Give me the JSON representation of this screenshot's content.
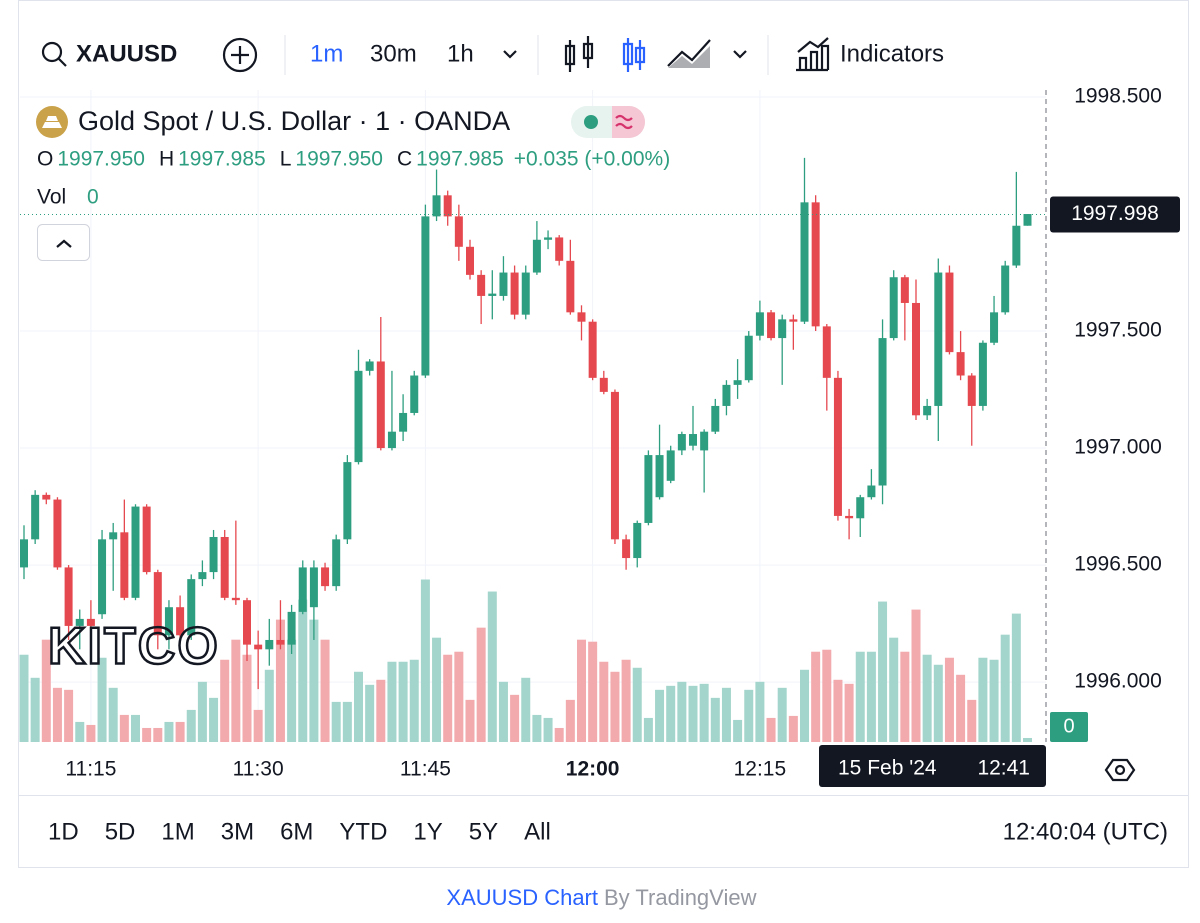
{
  "toolbar": {
    "symbol": "XAUUSD",
    "intervals": [
      "1m",
      "30m",
      "1h"
    ],
    "indicators": "Indicators"
  },
  "legend": {
    "title": "Gold Spot / U.S. Dollar · 1 · OANDA",
    "ohlc": [
      {
        "key": "O",
        "value": "1997.950"
      },
      {
        "key": "H",
        "value": "1997.985"
      },
      {
        "key": "L",
        "value": "1997.950"
      },
      {
        "key": "C",
        "value": "1997.985"
      }
    ],
    "change": "+0.035 (+0.00%)",
    "vol_label": "Vol",
    "vol_value": "0"
  },
  "watermark": "KITCO",
  "crosshair": {
    "date": "15 Feb '24",
    "time": "12:41"
  },
  "ranges": [
    "1D",
    "5D",
    "1M",
    "3M",
    "6M",
    "YTD",
    "1Y",
    "5Y",
    "All"
  ],
  "clock": "12:40:04 (UTC)",
  "footer": {
    "link": "XAUUSD Chart",
    "by": "By TradingView"
  },
  "chart_data": {
    "type": "candlestick",
    "up_color": "#2e9e80",
    "down_color": "#e5494f",
    "volume_up_color": "#a3d5cc",
    "volume_down_color": "#f2aaad",
    "grid": true,
    "ylim": [
      1995.744,
      1998.53
    ],
    "yticks": [
      {
        "value": 1996,
        "label": "1996.000"
      },
      {
        "value": 1996.5,
        "label": "1996.500"
      },
      {
        "value": 1997,
        "label": "1997.000"
      },
      {
        "value": 1997.5,
        "label": "1997.500"
      },
      {
        "value": 1998.5,
        "label": "1998.500"
      }
    ],
    "xticks": [
      "11:15",
      "11:30",
      "11:45",
      "12:00",
      "12:15"
    ],
    "last_price": {
      "value": 1997.998,
      "label": "1997.998"
    },
    "volume_last": "0",
    "volume_lim": [
      0,
      650
    ],
    "x": [
      "11:09",
      "11:10",
      "11:11",
      "11:12",
      "11:13",
      "11:14",
      "11:15",
      "11:16",
      "11:17",
      "11:18",
      "11:19",
      "11:20",
      "11:21",
      "11:22",
      "11:23",
      "11:24",
      "11:25",
      "11:26",
      "11:27",
      "11:28",
      "11:29",
      "11:30",
      "11:31",
      "11:32",
      "11:33",
      "11:34",
      "11:35",
      "11:36",
      "11:37",
      "11:38",
      "11:39",
      "11:40",
      "11:41",
      "11:42",
      "11:43",
      "11:44",
      "11:45",
      "11:46",
      "11:47",
      "11:48",
      "11:49",
      "11:50",
      "11:51",
      "11:52",
      "11:53",
      "11:54",
      "11:55",
      "11:56",
      "11:57",
      "11:58",
      "11:59",
      "12:00",
      "12:01",
      "12:02",
      "12:03",
      "12:04",
      "12:05",
      "12:06",
      "12:07",
      "12:08",
      "12:09",
      "12:10",
      "12:11",
      "12:12",
      "12:13",
      "12:14",
      "12:15",
      "12:16",
      "12:17",
      "12:18",
      "12:19",
      "12:20",
      "12:21",
      "12:22",
      "12:23",
      "12:24",
      "12:25",
      "12:26",
      "12:27",
      "12:28",
      "12:29",
      "12:30",
      "12:31",
      "12:32",
      "12:33",
      "12:34",
      "12:35",
      "12:36",
      "12:37",
      "12:38",
      "12:39"
    ],
    "open": [
      1996.49,
      1996.61,
      1996.8,
      1996.78,
      1996.49,
      1996.24,
      1996.27,
      1996.29,
      1996.61,
      1996.64,
      1996.36,
      1996.75,
      1996.47,
      1996.2,
      1996.32,
      1996.2,
      1996.44,
      1996.47,
      1996.62,
      1996.36,
      1996.35,
      1996.16,
      1996.14,
      1996.18,
      1996.16,
      1996.3,
      1996.32,
      1996.49,
      1996.41,
      1996.61,
      1996.94,
      1997.33,
      1997.37,
      1997.0,
      1997.07,
      1997.15,
      1997.31,
      1997.99,
      1998.08,
      1997.99,
      1997.86,
      1997.74,
      1997.65,
      1997.65,
      1997.75,
      1997.57,
      1997.75,
      1997.89,
      1997.9,
      1997.8,
      1997.58,
      1997.54,
      1997.3,
      1997.24,
      1996.61,
      1996.53,
      1996.68,
      1996.79,
      1996.86,
      1996.99,
      1997.01,
      1996.99,
      1997.07,
      1997.18,
      1997.27,
      1997.29,
      1997.48,
      1997.58,
      1997.47,
      1997.55,
      1997.54,
      1998.05,
      1997.52,
      1997.3,
      1996.71,
      1996.7,
      1996.79,
      1996.84,
      1997.47,
      1997.73,
      1997.62,
      1997.14,
      1997.18,
      1997.75,
      1997.41,
      1997.31,
      1997.18,
      1997.45,
      1997.58,
      1997.78,
      1997.95
    ],
    "high": [
      1996.67,
      1996.82,
      1996.81,
      1996.79,
      1996.5,
      1996.31,
      1996.35,
      1996.65,
      1996.68,
      1996.78,
      1996.76,
      1996.76,
      1996.48,
      1996.35,
      1996.37,
      1996.46,
      1996.52,
      1996.65,
      1996.65,
      1996.69,
      1996.36,
      1996.22,
      1996.27,
      1996.35,
      1996.33,
      1996.52,
      1996.52,
      1996.51,
      1996.63,
      1996.97,
      1997.42,
      1997.38,
      1997.56,
      1997.33,
      1997.23,
      1997.33,
      1998.04,
      1998.19,
      1998.1,
      1998.04,
      1997.89,
      1997.76,
      1997.76,
      1997.82,
      1997.78,
      1997.78,
      1997.97,
      1997.93,
      1997.91,
      1997.89,
      1997.61,
      1997.55,
      1997.33,
      1997.25,
      1996.63,
      1996.69,
      1996.99,
      1997.1,
      1997.01,
      1997.07,
      1997.18,
      1997.08,
      1997.21,
      1997.29,
      1997.38,
      1997.5,
      1997.63,
      1997.59,
      1997.57,
      1997.57,
      1998.24,
      1998.08,
      1997.53,
      1997.33,
      1996.74,
      1996.8,
      1996.91,
      1997.55,
      1997.76,
      1997.74,
      1997.72,
      1997.21,
      1997.81,
      1997.78,
      1997.5,
      1997.32,
      1997.46,
      1997.65,
      1997.8,
      1998.18,
      1998.0
    ],
    "low": [
      1996.44,
      1996.59,
      1996.76,
      1996.48,
      1996.18,
      1996.14,
      1996.2,
      1996.27,
      1996.39,
      1996.35,
      1996.35,
      1996.46,
      1996.14,
      1996.14,
      1996.18,
      1996.18,
      1996.41,
      1996.44,
      1996.35,
      1996.33,
      1996.09,
      1995.97,
      1996.07,
      1996.14,
      1996.12,
      1996.29,
      1996.18,
      1996.39,
      1996.39,
      1996.59,
      1996.93,
      1997.31,
      1996.99,
      1996.99,
      1997.03,
      1997.14,
      1997.3,
      1997.97,
      1997.95,
      1997.8,
      1997.72,
      1997.53,
      1997.55,
      1997.63,
      1997.55,
      1997.55,
      1997.74,
      1997.85,
      1997.78,
      1997.57,
      1997.46,
      1997.29,
      1997.23,
      1996.59,
      1996.48,
      1996.49,
      1996.67,
      1996.78,
      1996.85,
      1996.97,
      1996.99,
      1996.81,
      1997.06,
      1997.14,
      1997.21,
      1997.28,
      1997.46,
      1997.46,
      1997.27,
      1997.42,
      1997.53,
      1997.5,
      1997.16,
      1996.69,
      1996.61,
      1996.62,
      1996.78,
      1996.76,
      1997.46,
      1997.46,
      1997.12,
      1997.12,
      1997.03,
      1997.4,
      1997.29,
      1997.01,
      1997.16,
      1997.44,
      1997.57,
      1997.77,
      1997.95
    ],
    "close": [
      1996.61,
      1996.8,
      1996.78,
      1996.49,
      1996.24,
      1996.27,
      1996.24,
      1996.61,
      1996.64,
      1996.36,
      1996.75,
      1996.47,
      1996.2,
      1996.32,
      1996.2,
      1996.44,
      1996.47,
      1996.62,
      1996.36,
      1996.35,
      1996.16,
      1996.14,
      1996.18,
      1996.16,
      1996.3,
      1996.49,
      1996.49,
      1996.41,
      1996.61,
      1996.94,
      1997.33,
      1997.37,
      1997.0,
      1997.07,
      1997.15,
      1997.31,
      1997.99,
      1998.08,
      1997.99,
      1997.86,
      1997.74,
      1997.65,
      1997.66,
      1997.75,
      1997.57,
      1997.75,
      1997.89,
      1997.9,
      1997.8,
      1997.58,
      1997.54,
      1997.3,
      1997.24,
      1996.61,
      1996.53,
      1996.68,
      1996.97,
      1996.97,
      1996.99,
      1997.06,
      1997.06,
      1997.07,
      1997.18,
      1997.27,
      1997.29,
      1997.48,
      1997.58,
      1997.47,
      1997.55,
      1997.54,
      1998.05,
      1997.52,
      1997.3,
      1996.71,
      1996.7,
      1996.79,
      1996.84,
      1997.47,
      1997.73,
      1997.62,
      1997.14,
      1997.18,
      1997.75,
      1997.41,
      1997.31,
      1997.18,
      1997.45,
      1997.58,
      1997.78,
      1997.95,
      1998.0
    ],
    "volume": [
      87,
      64,
      102,
      54,
      52,
      20,
      17,
      84,
      54,
      27,
      27,
      14,
      14,
      20,
      20,
      32,
      60,
      44,
      82,
      102,
      87,
      32,
      72,
      122,
      102,
      142,
      122,
      102,
      40,
      40,
      70,
      57,
      62,
      80,
      80,
      82,
      162,
      104,
      87,
      90,
      42,
      114,
      150,
      60,
      47,
      64,
      27,
      24,
      14,
      42,
      102,
      100,
      80,
      70,
      82,
      74,
      24,
      52,
      56,
      60,
      56,
      58,
      44,
      54,
      22,
      52,
      60,
      24,
      54,
      26,
      72,
      90,
      92,
      62,
      58,
      90,
      90,
      140,
      104,
      90,
      132,
      87,
      77,
      84,
      67,
      42,
      84,
      82,
      107,
      128,
      4
    ]
  }
}
